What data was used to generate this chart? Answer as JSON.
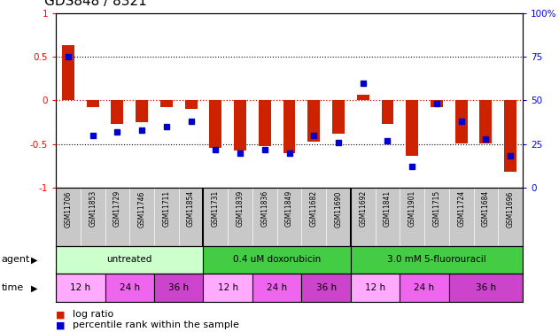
{
  "title": "GDS848 / 8321",
  "samples": [
    "GSM11706",
    "GSM11853",
    "GSM11729",
    "GSM11746",
    "GSM11711",
    "GSM11854",
    "GSM11731",
    "GSM11839",
    "GSM11836",
    "GSM11849",
    "GSM11682",
    "GSM11690",
    "GSM11692",
    "GSM11841",
    "GSM11901",
    "GSM11715",
    "GSM11724",
    "GSM11684",
    "GSM11696"
  ],
  "log_ratio": [
    0.63,
    -0.08,
    -0.27,
    -0.25,
    -0.08,
    -0.1,
    -0.54,
    -0.57,
    -0.52,
    -0.6,
    -0.47,
    -0.38,
    0.07,
    -0.27,
    -0.64,
    -0.08,
    -0.49,
    -0.49,
    -0.82
  ],
  "pct_rank": [
    75,
    30,
    32,
    33,
    35,
    38,
    22,
    20,
    22,
    20,
    30,
    26,
    60,
    27,
    12,
    48,
    38,
    28,
    18
  ],
  "bar_color": "#cc2200",
  "pct_color": "#0000cc",
  "bg_color": "#ffffff",
  "label_bg": "#c8c8c8",
  "agent_groups": [
    {
      "start": 0,
      "end": 5,
      "color": "#ccffcc",
      "label": "untreated"
    },
    {
      "start": 6,
      "end": 11,
      "color": "#44cc44",
      "label": "0.4 uM doxorubicin"
    },
    {
      "start": 12,
      "end": 18,
      "color": "#44cc44",
      "label": "3.0 mM 5-fluorouracil"
    }
  ],
  "time_groups": [
    {
      "start": 0,
      "end": 1,
      "color": "#ffaaff",
      "label": "12 h"
    },
    {
      "start": 2,
      "end": 3,
      "color": "#ee66ee",
      "label": "24 h"
    },
    {
      "start": 4,
      "end": 5,
      "color": "#cc44cc",
      "label": "36 h"
    },
    {
      "start": 6,
      "end": 7,
      "color": "#ffaaff",
      "label": "12 h"
    },
    {
      "start": 8,
      "end": 9,
      "color": "#ee66ee",
      "label": "24 h"
    },
    {
      "start": 10,
      "end": 11,
      "color": "#cc44cc",
      "label": "36 h"
    },
    {
      "start": 12,
      "end": 13,
      "color": "#ffaaff",
      "label": "12 h"
    },
    {
      "start": 14,
      "end": 15,
      "color": "#ee66ee",
      "label": "24 h"
    },
    {
      "start": 16,
      "end": 18,
      "color": "#cc44cc",
      "label": "36 h"
    }
  ]
}
